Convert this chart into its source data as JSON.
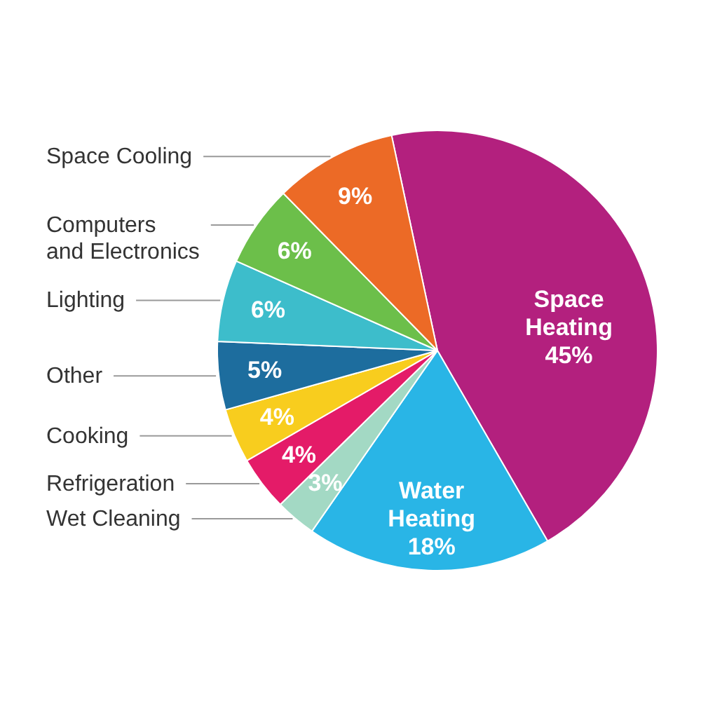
{
  "chart_data": {
    "type": "pie",
    "categories": [
      "Space Heating",
      "Water Heating",
      "Wet Cleaning",
      "Refrigeration",
      "Cooking",
      "Other",
      "Lighting",
      "Computers and Electronics",
      "Space Cooling"
    ],
    "values": [
      45,
      18,
      3,
      4,
      4,
      5,
      6,
      6,
      9
    ],
    "colors": [
      "#b3207e",
      "#29b5e6",
      "#a3d9c4",
      "#e41b68",
      "#f8cd1e",
      "#1d6d9e",
      "#3dbdcb",
      "#6cbf4a",
      "#ec6a26"
    ],
    "value_labels": [
      "45%",
      "18%",
      "3%",
      "4%",
      "4%",
      "5%",
      "6%",
      "6%",
      "9%"
    ]
  }
}
